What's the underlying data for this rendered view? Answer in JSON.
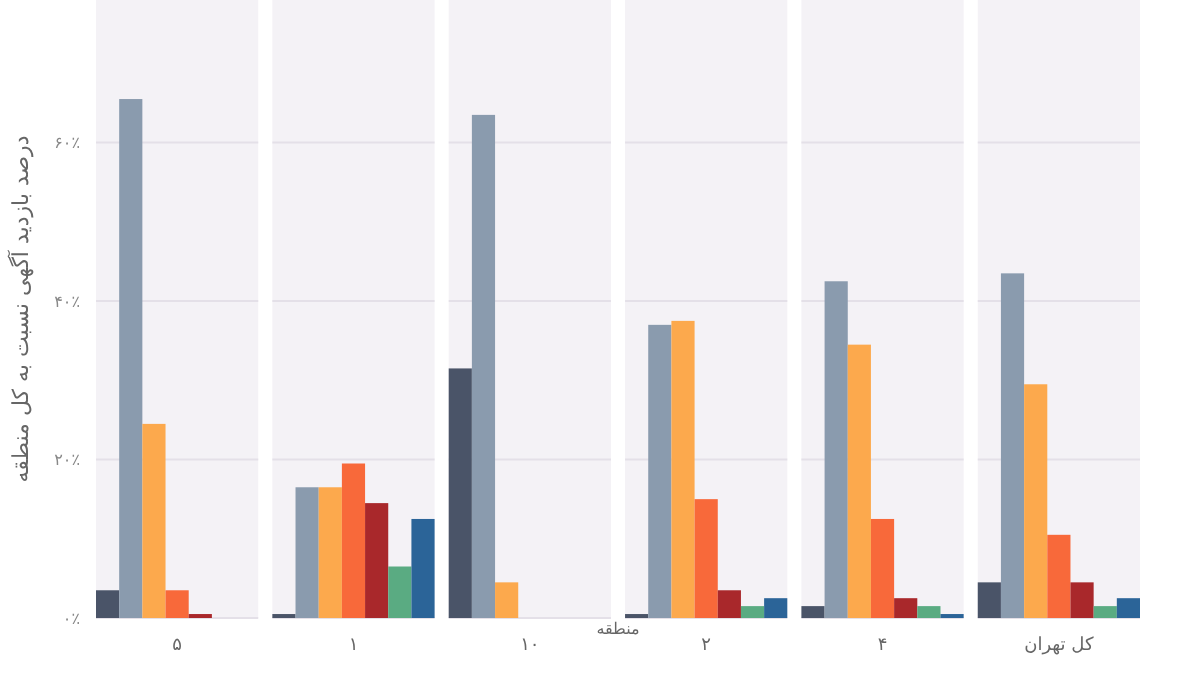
{
  "chart_data": {
    "type": "bar",
    "xlabel": "منطقه",
    "ylabel": "درصد بازدید آگهی نسبت به کل منطقه",
    "categories": [
      "۵",
      "۱",
      "۱۰",
      "۲",
      "۴",
      "کل تهران"
    ],
    "series": [
      {
        "color": "#4a5468",
        "values": [
          3.5,
          0.5,
          31.5,
          0.5,
          1.5,
          4.5
        ]
      },
      {
        "color": "#8a9bae",
        "values": [
          65.5,
          16.5,
          63.5,
          37,
          42.5,
          43.5
        ]
      },
      {
        "color": "#fca94d",
        "values": [
          24.5,
          16.5,
          4.5,
          37.5,
          34.5,
          29.5
        ]
      },
      {
        "color": "#f8693a",
        "values": [
          3.5,
          19.5,
          0,
          15,
          12.5,
          10.5
        ]
      },
      {
        "color": "#a9282b",
        "values": [
          0.5,
          14.5,
          0,
          3.5,
          2.5,
          4.5
        ]
      },
      {
        "color": "#5aab82",
        "values": [
          0,
          6.5,
          0,
          1.5,
          1.5,
          1.5
        ]
      },
      {
        "color": "#2b6498",
        "values": [
          0,
          12.5,
          0,
          2.5,
          0.5,
          2.5
        ]
      }
    ],
    "ylim": [
      0,
      78
    ],
    "yticks": [
      {
        "value": 0,
        "label": "۰٪"
      },
      {
        "value": 20,
        "label": "۲۰٪"
      },
      {
        "value": 40,
        "label": "۴۰٪"
      },
      {
        "value": 60,
        "label": "۶۰٪"
      }
    ],
    "grid": "y"
  }
}
